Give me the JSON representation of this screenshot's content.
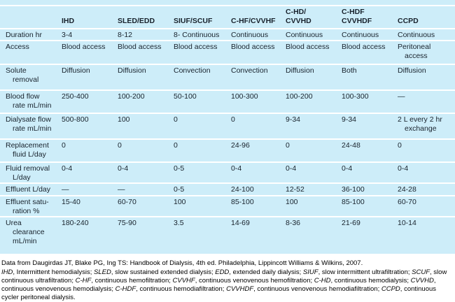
{
  "table": {
    "columns": [
      [
        ""
      ],
      [
        "IHD"
      ],
      [
        "SLED/EDD"
      ],
      [
        "SIUF/SCUF"
      ],
      [
        "C-HF/CVVHF"
      ],
      [
        "C-HD/",
        "CVVHD"
      ],
      [
        "C-HDF",
        "CVVHDF"
      ],
      [
        "CCPD"
      ]
    ],
    "rows": [
      {
        "label": [
          "Duration hr"
        ],
        "values": [
          "3-4",
          "8-12",
          "8- Continuous",
          "Continuous",
          "Continuous",
          "Continuous",
          "Continuous"
        ]
      },
      {
        "label": [
          "Access"
        ],
        "values": [
          "Blood access",
          "Blood access",
          "Blood access",
          "Blood access",
          "Blood access",
          "Blood access",
          [
            "Peritoneal",
            "access"
          ]
        ]
      },
      {
        "label": [
          "Solute",
          "removal"
        ],
        "values": [
          "Diffusion",
          "Diffusion",
          "Convection",
          "Convection",
          "Diffusion",
          "Both",
          "Diffusion"
        ]
      },
      {
        "label": [
          "Blood flow",
          "rate mL/min"
        ],
        "values": [
          "250-400",
          "100-200",
          "50-100",
          "100-300",
          "100-200",
          "100-300",
          "—"
        ]
      },
      {
        "label": [
          "Dialysate flow",
          "rate mL/min"
        ],
        "values": [
          "500-800",
          "100",
          "0",
          "0",
          "9-34",
          "9-34",
          [
            "2 L every 2 hr",
            "exchange"
          ]
        ]
      },
      {
        "label": [
          "Replacement",
          "fluid L/day"
        ],
        "values": [
          "0",
          "0",
          "0",
          "24-96",
          "0",
          "24-48",
          "0"
        ]
      },
      {
        "label": [
          "Fluid removal",
          "L/day"
        ],
        "values": [
          "0-4",
          "0-4",
          "0-5",
          "0-4",
          "0-4",
          "0-4",
          "0-4"
        ]
      },
      {
        "label": [
          "Effluent L/day"
        ],
        "values": [
          "—",
          "—",
          "0-5",
          "24-100",
          "12-52",
          "36-100",
          "24-28"
        ]
      },
      {
        "label": [
          "Effluent satu-",
          "ration %"
        ],
        "values": [
          "15-40",
          "60-70",
          "100",
          "85-100",
          "100",
          "85-100",
          "60-70"
        ]
      },
      {
        "label": [
          "Urea",
          "clearance",
          "mL/min"
        ],
        "values": [
          "180-240",
          "75-90",
          "3.5",
          "14-69",
          "8-36",
          "21-69",
          "10-14"
        ]
      }
    ]
  },
  "footnotes": {
    "source": "Data from Daugirdas JT, Blake PG, Ing TS: Handbook of Dialysis, 4th ed. Philadelphia, Lippincott Williams & Wilkins, 2007.",
    "abbreviations": [
      {
        "abbr": "IHD",
        "definition": "Intermittent hemodialysis"
      },
      {
        "abbr": "SLED",
        "definition": "slow sustained extended dialysis"
      },
      {
        "abbr": "EDD",
        "definition": "extended daily dialysis"
      },
      {
        "abbr": "SIUF",
        "definition": "slow intermittent ultrafiltration"
      },
      {
        "abbr": "SCUF",
        "definition": "slow continuous ultrafiltration"
      },
      {
        "abbr": "C-HF",
        "definition": "continuous hemofiltration"
      },
      {
        "abbr": "CVVHF",
        "definition": "continuous venovenous hemofiltration"
      },
      {
        "abbr": "C-HD",
        "definition": "continuous hemodialysis"
      },
      {
        "abbr": "CVVHD",
        "definition": "continuous venovenous hemodialysis"
      },
      {
        "abbr": "C-HDF",
        "definition": "continuous hemodiafiltration"
      },
      {
        "abbr": "CVVHDF",
        "definition": "continuous venovenous hemodiafiltration"
      },
      {
        "abbr": "CCPD",
        "definition": "continuous cycler peritoneal dialysis"
      }
    ]
  },
  "colors": {
    "table_background": "#cdedf9",
    "row_separator": "#ffffff",
    "text": "#18222c",
    "footnote_text": "#000000"
  }
}
